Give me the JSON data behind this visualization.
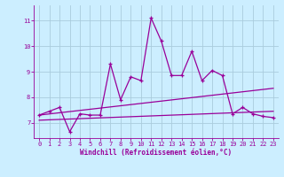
{
  "xlabel": "Windchill (Refroidissement éolien,°C)",
  "background_color": "#cceeff",
  "grid_color": "#aaccdd",
  "line_color": "#990099",
  "xlim": [
    -0.5,
    23.5
  ],
  "ylim": [
    6.4,
    11.6
  ],
  "yticks": [
    7,
    8,
    9,
    10,
    11
  ],
  "xticks": [
    0,
    1,
    2,
    3,
    4,
    5,
    6,
    7,
    8,
    9,
    10,
    11,
    12,
    13,
    14,
    15,
    16,
    17,
    18,
    19,
    20,
    21,
    22,
    23
  ],
  "main_line_x": [
    0,
    1,
    2,
    3,
    4,
    5,
    6,
    7,
    8,
    9,
    10,
    11,
    12,
    13,
    14,
    15,
    16,
    17,
    18,
    19,
    20,
    21,
    22,
    23
  ],
  "main_line_y": [
    7.3,
    7.45,
    7.6,
    6.65,
    7.35,
    7.3,
    7.3,
    9.3,
    7.9,
    8.8,
    8.65,
    11.1,
    10.2,
    8.85,
    8.85,
    9.8,
    8.65,
    9.05,
    8.85,
    7.35,
    7.6,
    7.35,
    7.25,
    7.2
  ],
  "trend1_x": [
    0,
    23
  ],
  "trend1_y": [
    7.3,
    8.35
  ],
  "trend2_x": [
    0,
    23
  ],
  "trend2_y": [
    7.1,
    7.45
  ],
  "tick_fontsize": 5.0,
  "xlabel_fontsize": 5.5
}
